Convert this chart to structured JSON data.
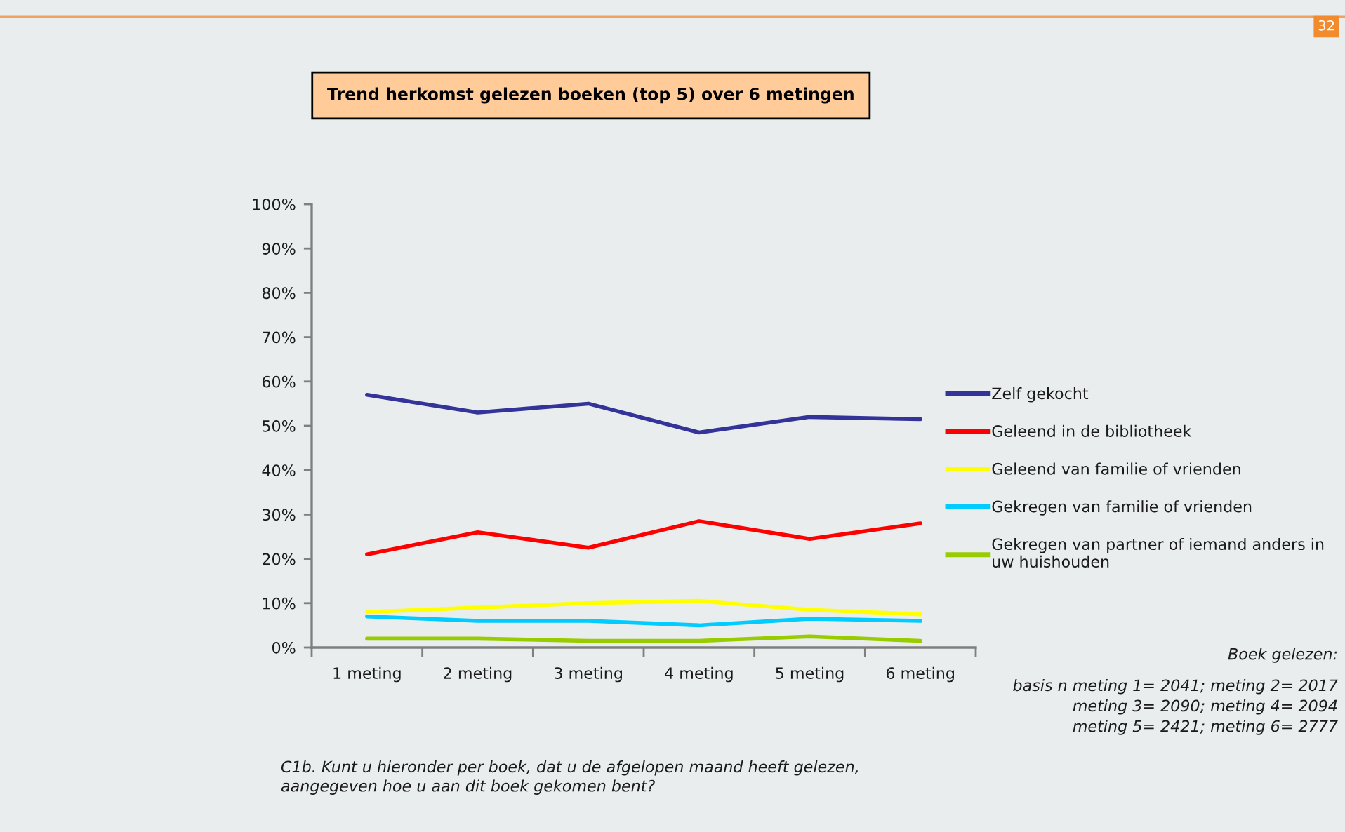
{
  "chart_data": {
    "type": "line",
    "title": "Trend herkomst gelezen boeken (top 5) over 6 metingen",
    "categories": [
      "1 meting",
      "2 meting",
      "3 meting",
      "4 meting",
      "5 meting",
      "6 meting"
    ],
    "series": [
      {
        "name": "Zelf gekocht",
        "color": "#333399",
        "values": [
          57,
          53,
          55,
          48.5,
          52,
          51.5
        ]
      },
      {
        "name": "Geleend in de bibliotheek",
        "color": "#ff0000",
        "values": [
          21,
          26,
          22.5,
          28.5,
          24.5,
          28
        ]
      },
      {
        "name": "Geleend van familie of vrienden",
        "color": "#ffff00",
        "values": [
          8,
          9,
          10,
          10.5,
          8.5,
          7.5
        ]
      },
      {
        "name": "Gekregen van familie of vrienden",
        "color": "#00ccff",
        "values": [
          7,
          6,
          6,
          5,
          6.5,
          6
        ]
      },
      {
        "name": "Gekregen van partner of iemand anders in\nuw huishouden",
        "color": "#99cc00",
        "values": [
          2,
          2,
          1.5,
          1.5,
          2.5,
          1.5
        ]
      }
    ],
    "ylim": [
      0,
      100
    ],
    "yticks": [
      {
        "value": 0,
        "label": "0%"
      },
      {
        "value": 10,
        "label": "10%"
      },
      {
        "value": 20,
        "label": "20%"
      },
      {
        "value": 30,
        "label": "30%"
      },
      {
        "value": 40,
        "label": "40%"
      },
      {
        "value": 50,
        "label": "50%"
      },
      {
        "value": 60,
        "label": "60%"
      },
      {
        "value": 70,
        "label": "70%"
      },
      {
        "value": 80,
        "label": "80%"
      },
      {
        "value": 90,
        "label": "90%"
      },
      {
        "value": 100,
        "label": "100%"
      }
    ],
    "grid": false,
    "legend": "right",
    "marker": "none",
    "line_style": "solid",
    "annotations": [
      "Boek gelezen:",
      "basis n meting 1= 2041; meting 2= 2017\nmeting 3= 2090; meting 4= 2094\nmeting 5= 2421; meting 6= 2777",
      "C1b. Kunt u hieronder per boek, dat u de afgelopen maand heeft gelezen,\naangegeven hoe u aan dit boek gekomen bent?",
      "32"
    ]
  }
}
